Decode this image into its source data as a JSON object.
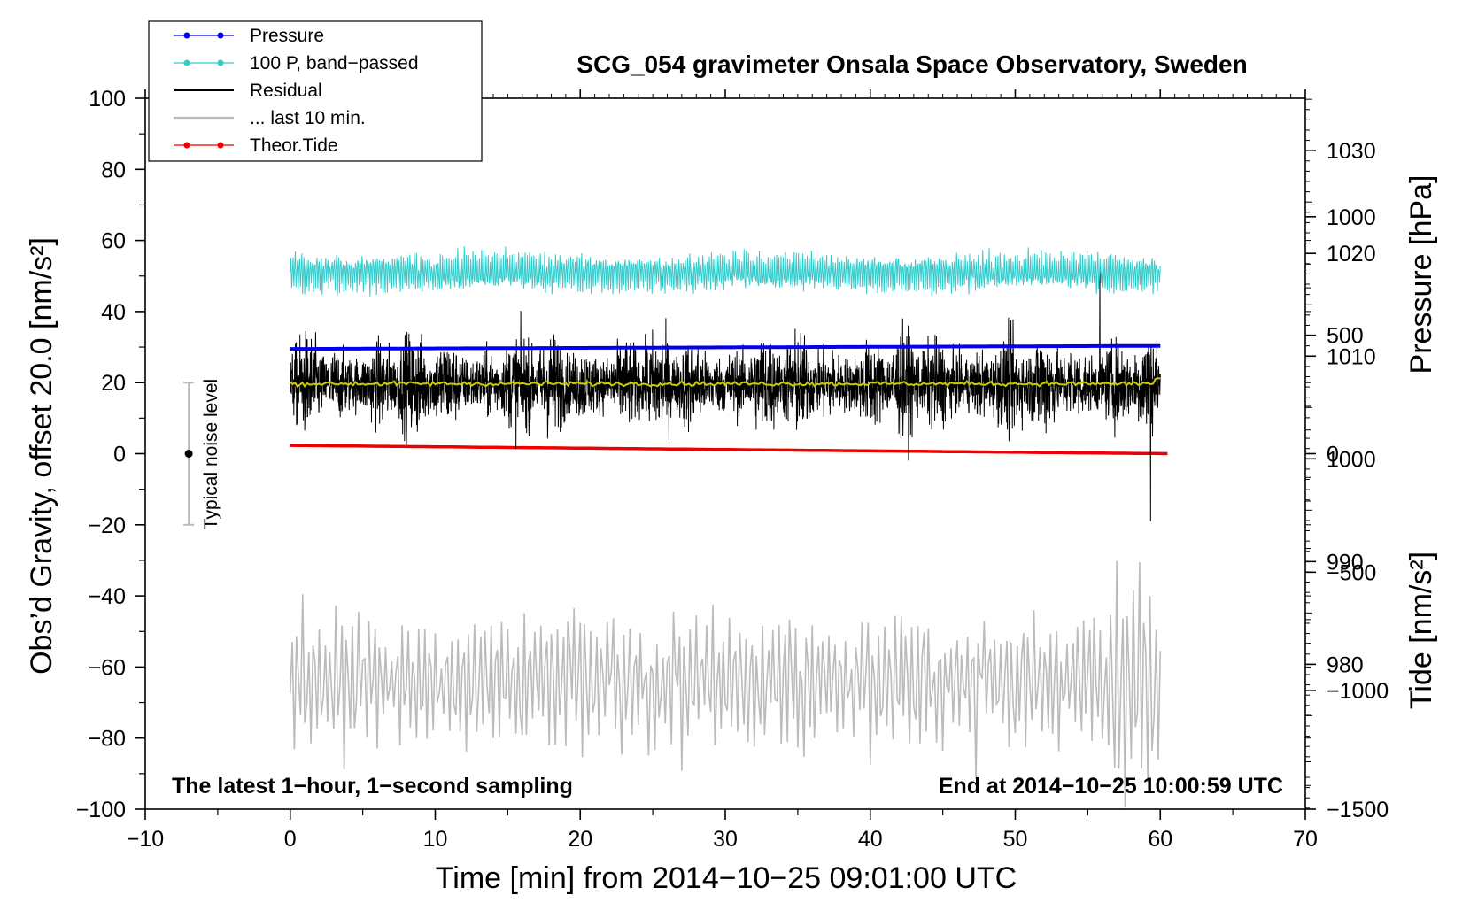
{
  "chart_data": {
    "type": "line",
    "title": "SCG_054 gravimeter Onsala Space Observatory, Sweden",
    "xlabel": "Time [min] from 2014−10−25 09:01:00 UTC",
    "ylabel_left": "Obs’d Gravity, offset 20.0 [nm/s²]",
    "ylabel_right_pressure": "Pressure [hPa]",
    "ylabel_right_tide": "Tide [nm/s²]",
    "xlim": [
      -10,
      70
    ],
    "ylim_left": [
      -100,
      100
    ],
    "xticks": [
      "−10",
      "0",
      "10",
      "20",
      "30",
      "40",
      "50",
      "60",
      "70"
    ],
    "yticks_left": [
      "100",
      "80",
      "60",
      "40",
      "20",
      "0",
      "−20",
      "−40",
      "−60",
      "−80",
      "−100"
    ],
    "pressure_ticks": [
      "1030",
      "1020",
      "1010",
      "1000",
      "990",
      "980"
    ],
    "pressure_tick_values": [
      1030,
      1020,
      1010,
      1000,
      990,
      980
    ],
    "tide_ticks": [
      "1000",
      "500",
      "0",
      "−500",
      "−1000",
      "−1500"
    ],
    "tide_tick_values": [
      1000,
      500,
      0,
      -500,
      -1000,
      -1500
    ],
    "pressure_axis_range": [
      965.9,
      1035.1
    ],
    "tide_axis_range": [
      -1500,
      1500
    ],
    "notes": {
      "left": "The latest 1−hour, 1−second sampling",
      "right": "End at 2014−10−25 10:00:59 UTC",
      "noise_label": "Typical noise level"
    },
    "noise_bar": {
      "x": -7,
      "center": 0,
      "low": -20,
      "high": 20
    },
    "legend": [
      {
        "label": "Pressure",
        "color": "#0000ee",
        "marker": true
      },
      {
        "label": "100 P, band−passed",
        "color": "#33cccc",
        "marker": true
      },
      {
        "label": "Residual",
        "color": "#000000",
        "marker": false
      },
      {
        "label": "... last 10 min.",
        "color": "#bbbbbb",
        "marker": false
      },
      {
        "label": "Theor.Tide",
        "color": "#ee0000",
        "marker": true
      }
    ],
    "series": [
      {
        "name": "Pressure",
        "axis": "pressure",
        "unit": "hPa",
        "x_range": [
          0,
          60
        ],
        "start": 1010.7,
        "end": 1011.0,
        "color": "#0000ee"
      },
      {
        "name": "100 P, band−passed",
        "axis": "left",
        "x_range": [
          0,
          60
        ],
        "mean": 51,
        "amplitude": 5,
        "min": 40,
        "max": 59,
        "color": "#33cccc"
      },
      {
        "name": "Residual",
        "axis": "left",
        "x_range": [
          0,
          60
        ],
        "mean": 19.5,
        "min": -19,
        "max": 52,
        "color": "#000000"
      },
      {
        "name": "Residual mean",
        "axis": "left",
        "x_range": [
          0,
          60
        ],
        "mean": 19.7,
        "color": "#cccc00"
      },
      {
        "name": "... last 10 min.",
        "axis": "left",
        "x_range": [
          0,
          60
        ],
        "mean": -64,
        "min": -100,
        "max": -26,
        "color": "#bbbbbb"
      },
      {
        "name": "Theor.Tide",
        "axis": "tide",
        "unit": "nm/s²",
        "x_range": [
          0,
          60.5
        ],
        "start": 35,
        "end": 0,
        "color": "#ee0000"
      }
    ]
  }
}
